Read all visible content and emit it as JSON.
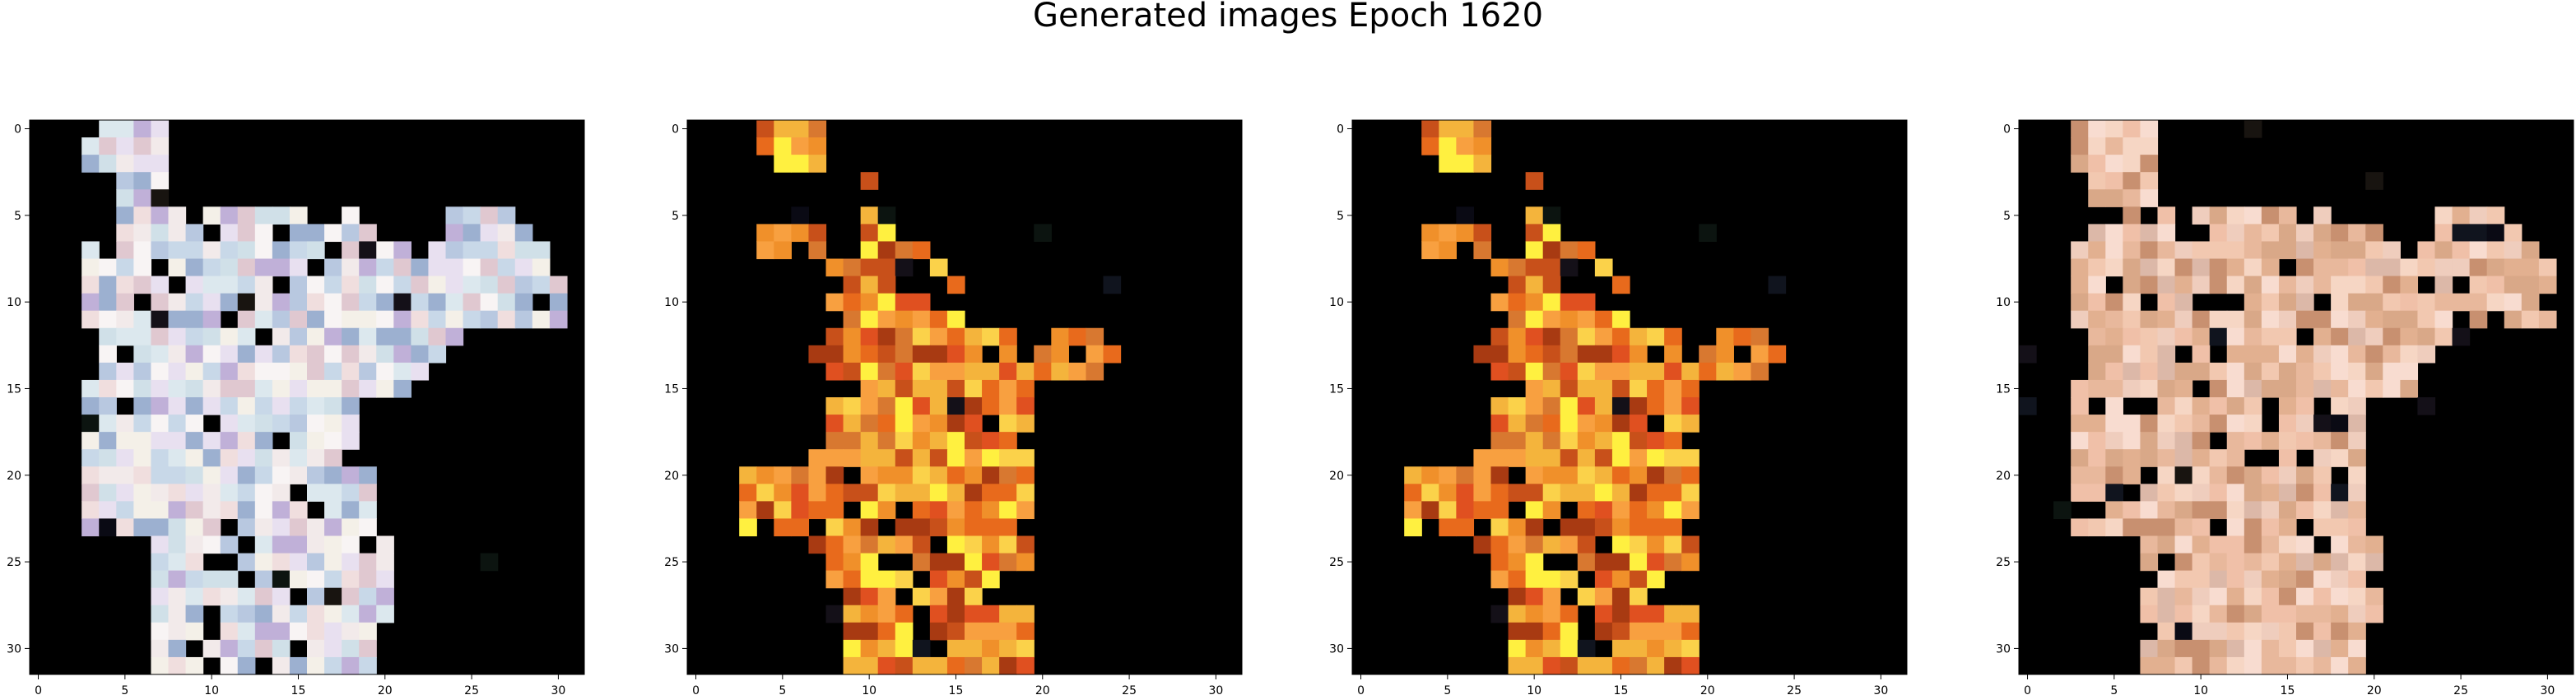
{
  "figure": {
    "title": "Generated images Epoch 1620"
  },
  "axes": {
    "x_ticks": [
      "0",
      "5",
      "10",
      "15",
      "20",
      "25",
      "30"
    ],
    "y_ticks": [
      "0",
      "5",
      "10",
      "15",
      "20",
      "25",
      "30"
    ],
    "grid_size": 32
  },
  "panels": [
    {
      "name": "generated-image-1",
      "palette": "light",
      "seed": 11
    },
    {
      "name": "generated-image-2",
      "palette": "fire",
      "seed": 29
    },
    {
      "name": "generated-image-3",
      "palette": "fire",
      "seed": 29
    },
    {
      "name": "generated-image-4",
      "palette": "skin",
      "seed": 47
    }
  ]
}
